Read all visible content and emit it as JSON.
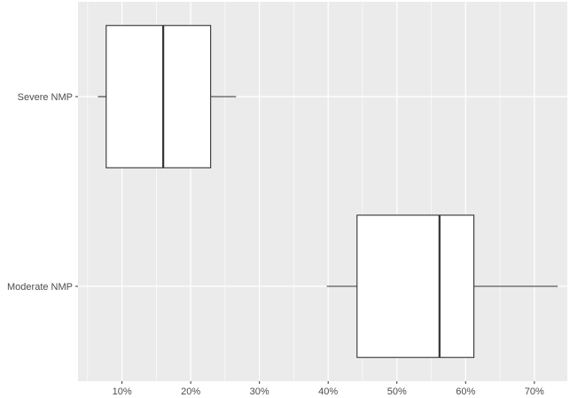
{
  "chart_data": {
    "type": "boxplot",
    "orientation": "horizontal",
    "title": "",
    "xlabel": "",
    "ylabel": "",
    "categories": [
      "Severe NMP",
      "Moderate NMP"
    ],
    "x_ticks": [
      {
        "value": 0.1,
        "label": "10%"
      },
      {
        "value": 0.2,
        "label": "20%"
      },
      {
        "value": 0.3,
        "label": "30%"
      },
      {
        "value": 0.4,
        "label": "40%"
      },
      {
        "value": 0.5,
        "label": "50%"
      },
      {
        "value": 0.6,
        "label": "60%"
      },
      {
        "value": 0.7,
        "label": "70%"
      }
    ],
    "xlim": [
      0.036,
      0.748
    ],
    "grid": true,
    "boxes": [
      {
        "category": "Severe NMP",
        "whisker_low": 0.065,
        "q1": 0.077,
        "median": 0.16,
        "q3": 0.229,
        "whisker_high": 0.266
      },
      {
        "category": "Moderate NMP",
        "whisker_low": 0.398,
        "q1": 0.442,
        "median": 0.562,
        "q3": 0.612,
        "whisker_high": 0.734
      }
    ],
    "colors": {
      "panel_background": "#ebebeb",
      "grid": "#ffffff",
      "box_fill": "#ffffff",
      "box_stroke": "#333333",
      "axis_text": "#4d4d4d"
    }
  }
}
